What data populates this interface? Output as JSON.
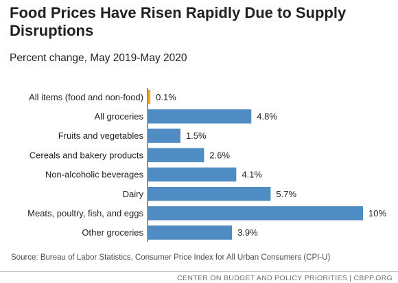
{
  "title": "Food Prices Have Risen Rapidly Due to Supply Disruptions",
  "subtitle": "Percent change, May 2019-May 2020",
  "source": "Source: Bureau of Labor Statistics, Consumer Price Index for All Urban Consumers (CPI-U)",
  "footer": "CENTER ON BUDGET AND POLICY PRIORITIES | CBPP.ORG",
  "colors": {
    "bar": "#4f8cc3",
    "highlight": "#f5a623",
    "axis": "#231f20"
  },
  "chart_data": {
    "type": "bar",
    "orientation": "horizontal",
    "title": "Food Prices Have Risen Rapidly Due to Supply Disruptions",
    "subtitle": "Percent change, May 2019-May 2020",
    "categories": [
      "All items (food and non-food)",
      "All groceries",
      "Fruits and vegetables",
      "Cereals and bakery products",
      "Non-alcoholic beverages",
      "Dairy",
      "Meats, poultry, fish, and eggs",
      "Other groceries"
    ],
    "values": [
      0.1,
      4.8,
      1.5,
      2.6,
      4.1,
      5.7,
      10,
      3.9
    ],
    "value_labels": [
      "0.1%",
      "4.8%",
      "1.5%",
      "2.6%",
      "4.1%",
      "5.7%",
      "10%",
      "3.9%"
    ],
    "xlim": [
      0,
      10
    ],
    "grid": false,
    "legend": "none"
  }
}
